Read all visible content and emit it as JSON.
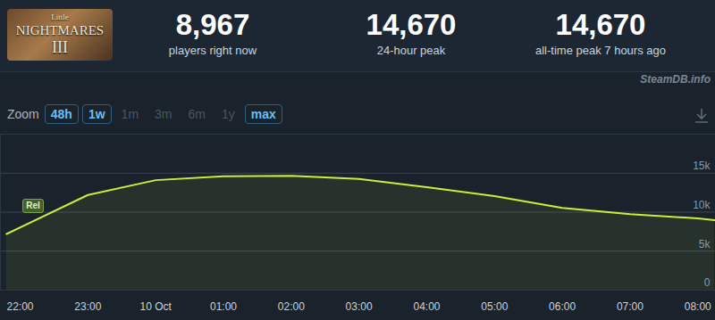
{
  "logo": [
    "Little",
    "NIGHTMARES",
    "III"
  ],
  "header": {
    "stats": [
      {
        "value": "8,967",
        "label": "players right now"
      },
      {
        "value": "14,670",
        "label": "24-hour peak"
      },
      {
        "value": "14,670",
        "label": "all-time peak 7 hours ago"
      }
    ]
  },
  "watermark": "SteamDB.info",
  "zoom": {
    "label": "Zoom",
    "options": [
      "48h",
      "1w",
      "1m",
      "3m",
      "6m",
      "1y",
      "max"
    ],
    "active": [
      "48h",
      "1w",
      "max"
    ]
  },
  "chart_data": {
    "type": "line",
    "x": [
      21.8,
      23,
      24,
      25,
      26,
      27,
      28,
      29,
      30,
      31,
      32,
      32.25
    ],
    "values": [
      7200,
      12200,
      14100,
      14600,
      14670,
      14250,
      13200,
      12050,
      10550,
      9750,
      9200,
      8967
    ],
    "color": "#c8f03a",
    "xlim": [
      21.71,
      32.26
    ],
    "xticks": [
      {
        "value": 22,
        "label": "22:00"
      },
      {
        "value": 23,
        "label": "23:00"
      },
      {
        "value": 24,
        "label": "10 Oct"
      },
      {
        "value": 25,
        "label": "01:00"
      },
      {
        "value": 26,
        "label": "02:00"
      },
      {
        "value": 27,
        "label": "03:00"
      },
      {
        "value": 28,
        "label": "04:00"
      },
      {
        "value": 29,
        "label": "05:00"
      },
      {
        "value": 30,
        "label": "06:00"
      },
      {
        "value": 31,
        "label": "07:00"
      },
      {
        "value": 32,
        "label": "08:00"
      }
    ],
    "ylim": [
      0,
      20000
    ],
    "yticks": [
      0,
      {
        "value": 5000,
        "label": "5k"
      },
      {
        "value": 10000,
        "label": "10k"
      },
      {
        "value": 15000,
        "label": "15k"
      }
    ],
    "grid": true,
    "annotations": [
      {
        "text": "Rel",
        "x": 22.2
      }
    ]
  }
}
